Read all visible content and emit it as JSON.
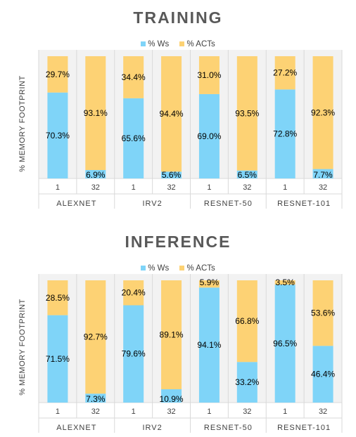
{
  "colors": {
    "ws": "#7fd4f8",
    "acts": "#fdd274",
    "bg": "#f2f2f2",
    "grid": "#d9d9d9",
    "text": "#000000"
  },
  "chart_data": [
    {
      "type": "bar",
      "stacked": true,
      "title": "TRAINING",
      "ylabel": "% MEMORY FOOTPRINT",
      "ylim": [
        0,
        100
      ],
      "legend": [
        "% Ws",
        "% ACTs"
      ],
      "legend_position": "top-center",
      "groups": [
        "ALEXNET",
        "IRV2",
        "RESNET-50",
        "RESNET-101"
      ],
      "categories": [
        "1",
        "32"
      ],
      "series": [
        {
          "name": "% Ws",
          "values": [
            [
              70.3,
              6.9
            ],
            [
              65.6,
              5.6
            ],
            [
              69.0,
              6.5
            ],
            [
              72.8,
              7.7
            ]
          ],
          "labels": [
            [
              "70.3%",
              "6.9%"
            ],
            [
              "65.6%",
              "5.6%"
            ],
            [
              "69.0%",
              "6.5%"
            ],
            [
              "72.8%",
              "7.7%"
            ]
          ]
        },
        {
          "name": "% ACTs",
          "values": [
            [
              29.7,
              93.1
            ],
            [
              34.4,
              94.4
            ],
            [
              31.0,
              93.5
            ],
            [
              27.2,
              92.3
            ]
          ],
          "labels": [
            [
              "29.7%",
              "93.1%"
            ],
            [
              "34.4%",
              "94.4%"
            ],
            [
              "31.0%",
              "93.5%"
            ],
            [
              "27.2%",
              "92.3%"
            ]
          ]
        }
      ]
    },
    {
      "type": "bar",
      "stacked": true,
      "title": "INFERENCE",
      "ylabel": "% MEMORY FOOTPRINT",
      "ylim": [
        0,
        100
      ],
      "legend": [
        "% Ws",
        "% ACTs"
      ],
      "legend_position": "top-center",
      "groups": [
        "ALEXNET",
        "IRV2",
        "RESNET-50",
        "RESNET-101"
      ],
      "categories": [
        "1",
        "32"
      ],
      "series": [
        {
          "name": "% Ws",
          "values": [
            [
              71.5,
              7.3
            ],
            [
              79.6,
              10.9
            ],
            [
              94.1,
              33.2
            ],
            [
              96.5,
              46.4
            ]
          ],
          "labels": [
            [
              "71.5%",
              "7.3%"
            ],
            [
              "79.6%",
              "10.9%"
            ],
            [
              "94.1%",
              "33.2%"
            ],
            [
              "96.5%",
              "46.4%"
            ]
          ]
        },
        {
          "name": "% ACTs",
          "values": [
            [
              28.5,
              92.7
            ],
            [
              20.4,
              89.1
            ],
            [
              5.9,
              66.8
            ],
            [
              3.5,
              53.6
            ]
          ],
          "labels": [
            [
              "28.5%",
              "92.7%"
            ],
            [
              "20.4%",
              "89.1%"
            ],
            [
              "5.9%",
              "66.8%"
            ],
            [
              "3.5%",
              "53.6%"
            ]
          ]
        }
      ]
    }
  ]
}
